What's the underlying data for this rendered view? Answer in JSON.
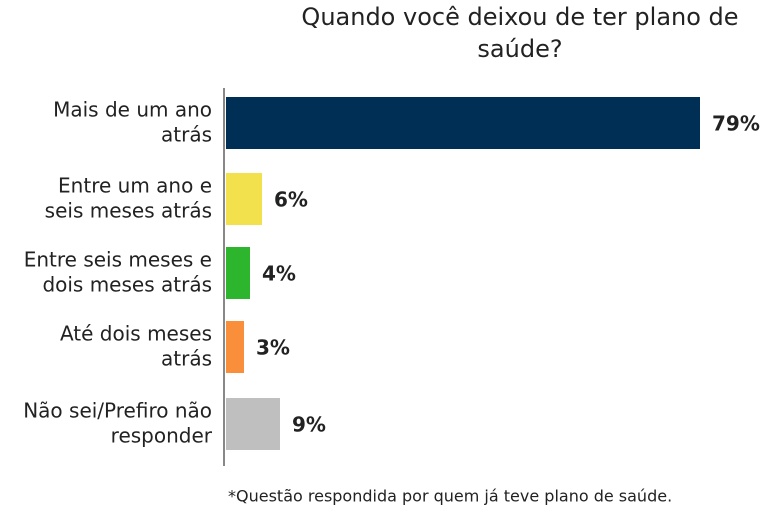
{
  "chart_data": {
    "type": "bar",
    "orientation": "horizontal",
    "title": "Quando você deixou de ter plano de saúde?",
    "categories": [
      "Mais de um ano atrás",
      "Entre um ano e seis meses atrás",
      "Entre seis meses e dois meses atrás",
      "Até dois meses atrás",
      "Não sei/Prefiro não responder"
    ],
    "values": [
      79,
      6,
      4,
      3,
      9
    ],
    "value_labels": [
      "79%",
      "6%",
      "4%",
      "3%",
      "9%"
    ],
    "colors": [
      "#002f56",
      "#f2e14c",
      "#2db52d",
      "#f98f3b",
      "#bfbfbf"
    ],
    "footnote": "*Questão respondida por quem já teve plano de saúde."
  }
}
